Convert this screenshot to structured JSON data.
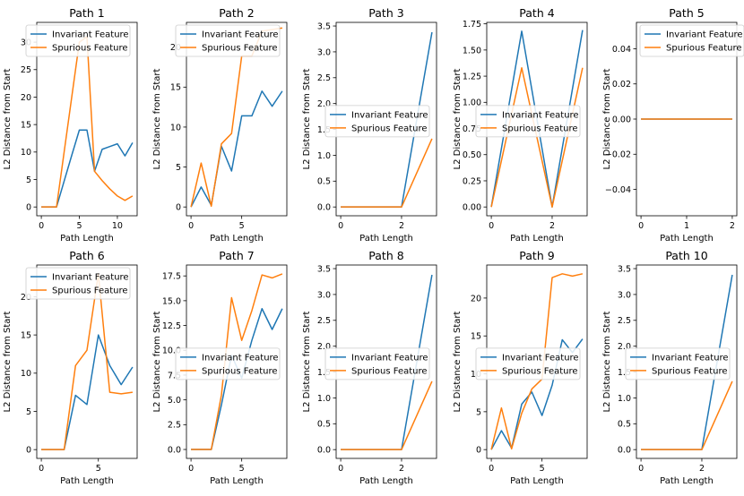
{
  "colors": {
    "invariant": "#1f77b4",
    "spurious": "#ff7f0e"
  },
  "chart_data": [
    {
      "type": "line",
      "title": "Path 1",
      "xlabel": "Path Length",
      "ylabel": "L2 Distance from Start",
      "xlim": [
        -0.6,
        12.6
      ],
      "ylim": [
        -1.6,
        33.6
      ],
      "xticks": [
        0,
        5,
        10
      ],
      "yticks": [
        0,
        5,
        10,
        15,
        20,
        25,
        30
      ],
      "legend": "upper-left",
      "series": [
        {
          "name": "Invariant Feature",
          "x": [
            0,
            1,
            2,
            3,
            4,
            5,
            6,
            7,
            8,
            9,
            10,
            11,
            12
          ],
          "values": [
            0,
            0,
            0,
            4.7,
            9.4,
            14,
            14,
            6.5,
            10.5,
            11,
            11.5,
            9.3,
            11.7
          ]
        },
        {
          "name": "Spurious Feature",
          "x": [
            0,
            1,
            2,
            3,
            4,
            5,
            6,
            7,
            8,
            9,
            10,
            11,
            12
          ],
          "values": [
            0,
            0,
            0,
            10,
            20,
            30,
            31,
            6.5,
            4.8,
            3.3,
            2,
            1.2,
            2
          ]
        }
      ]
    },
    {
      "type": "line",
      "title": "Path 2",
      "xlabel": "Path Length",
      "ylabel": "L2 Distance from Start",
      "xlim": [
        -0.45,
        9.45
      ],
      "ylim": [
        -1.1,
        23.1
      ],
      "xticks": [
        0,
        5
      ],
      "yticks": [
        0,
        5,
        10,
        15,
        20
      ],
      "legend": "upper-left",
      "series": [
        {
          "name": "Invariant Feature",
          "x": [
            0,
            1,
            2,
            3,
            4,
            5,
            6,
            7,
            8,
            9
          ],
          "values": [
            0,
            2.5,
            0.2,
            7.6,
            4.5,
            11.4,
            11.4,
            14.5,
            12.6,
            14.5
          ]
        },
        {
          "name": "Spurious Feature",
          "x": [
            0,
            1,
            2,
            3,
            4,
            5,
            6,
            7,
            8,
            9
          ],
          "values": [
            0,
            5.5,
            0.1,
            7.9,
            9.2,
            18.9,
            18.9,
            22,
            22.2,
            22.4
          ]
        }
      ]
    },
    {
      "type": "line",
      "title": "Path 3",
      "xlabel": "Path Length",
      "ylabel": "L2 Distance from Start",
      "xlim": [
        -0.15,
        3.15
      ],
      "ylim": [
        -0.17,
        3.57
      ],
      "xticks": [
        0,
        2
      ],
      "yticks": [
        0.0,
        0.5,
        1.0,
        1.5,
        2.0,
        2.5,
        3.0,
        3.5
      ],
      "legend": "center-left",
      "series": [
        {
          "name": "Invariant Feature",
          "x": [
            0,
            1,
            2,
            3
          ],
          "values": [
            0,
            0,
            0,
            3.38
          ]
        },
        {
          "name": "Spurious Feature",
          "x": [
            0,
            1,
            2,
            3
          ],
          "values": [
            0,
            0,
            0,
            1.32
          ]
        }
      ]
    },
    {
      "type": "line",
      "title": "Path 4",
      "xlabel": "Path Length",
      "ylabel": "L2 Distance from Start",
      "xlim": [
        -0.15,
        3.15
      ],
      "ylim": [
        -0.084,
        1.764
      ],
      "xticks": [
        0,
        2
      ],
      "yticks": [
        0.0,
        0.25,
        0.5,
        0.75,
        1.0,
        1.25,
        1.5,
        1.75
      ],
      "legend": "center-left",
      "series": [
        {
          "name": "Invariant Feature",
          "x": [
            0,
            1,
            2,
            3
          ],
          "values": [
            0,
            1.68,
            0,
            1.69
          ]
        },
        {
          "name": "Spurious Feature",
          "x": [
            0,
            1,
            2,
            3
          ],
          "values": [
            0,
            1.33,
            0,
            1.33
          ]
        }
      ]
    },
    {
      "type": "line",
      "title": "Path 5",
      "xlabel": "Path Length",
      "ylabel": "L2 Distance from Start",
      "xlim": [
        -0.1,
        2.1
      ],
      "ylim": [
        -0.055,
        0.055
      ],
      "xticks": [
        0,
        1,
        2
      ],
      "yticks": [
        -0.04,
        -0.02,
        0.0,
        0.02,
        0.04
      ],
      "legend": "upper-right",
      "series": [
        {
          "name": "Invariant Feature",
          "x": [
            0,
            1,
            2
          ],
          "values": [
            0,
            0,
            0
          ]
        },
        {
          "name": "Spurious Feature",
          "x": [
            0,
            1,
            2
          ],
          "values": [
            0,
            0,
            0
          ]
        }
      ]
    },
    {
      "type": "line",
      "title": "Path 6",
      "xlabel": "Path Length",
      "ylabel": "L2 Distance from Start",
      "xlim": [
        -0.4,
        8.4
      ],
      "ylim": [
        -1.15,
        24.15
      ],
      "xticks": [
        0,
        5
      ],
      "yticks": [
        0,
        5,
        10,
        15,
        20
      ],
      "legend": "upper-left",
      "series": [
        {
          "name": "Invariant Feature",
          "x": [
            0,
            1,
            2,
            3,
            4,
            5,
            6,
            7,
            8
          ],
          "values": [
            0,
            0,
            0,
            7.1,
            5.9,
            15,
            11,
            8.5,
            10.8
          ]
        },
        {
          "name": "Spurious Feature",
          "x": [
            0,
            1,
            2,
            3,
            4,
            5,
            6,
            7,
            8
          ],
          "values": [
            0,
            0,
            0,
            11,
            13,
            23,
            7.5,
            7.3,
            7.5
          ]
        }
      ]
    },
    {
      "type": "line",
      "title": "Path 7",
      "xlabel": "Path Length",
      "ylabel": "L2 Distance from Start",
      "xlim": [
        -0.45,
        9.45
      ],
      "ylim": [
        -0.9,
        18.6
      ],
      "xticks": [
        0,
        5
      ],
      "yticks": [
        0.0,
        2.5,
        5.0,
        7.5,
        10.0,
        12.5,
        15.0,
        17.5
      ],
      "legend": "center-left",
      "series": [
        {
          "name": "Invariant Feature",
          "x": [
            0,
            1,
            2,
            3,
            4,
            5,
            6,
            7,
            8,
            9
          ],
          "values": [
            0,
            0,
            0,
            4.5,
            9.5,
            7.2,
            11,
            14.2,
            12.1,
            14.2
          ]
        },
        {
          "name": "Spurious Feature",
          "x": [
            0,
            1,
            2,
            3,
            4,
            5,
            6,
            7,
            8,
            9
          ],
          "values": [
            0,
            0,
            0,
            5.5,
            15.3,
            11,
            14,
            17.6,
            17.3,
            17.7
          ]
        }
      ]
    },
    {
      "type": "line",
      "title": "Path 8",
      "xlabel": "Path Length",
      "ylabel": "L2 Distance from Start",
      "xlim": [
        -0.15,
        3.15
      ],
      "ylim": [
        -0.17,
        3.57
      ],
      "xticks": [
        0,
        2
      ],
      "yticks": [
        0.0,
        0.5,
        1.0,
        1.5,
        2.0,
        2.5,
        3.0,
        3.5
      ],
      "legend": "center-left",
      "series": [
        {
          "name": "Invariant Feature",
          "x": [
            0,
            1,
            2,
            3
          ],
          "values": [
            0,
            0,
            0,
            3.38
          ]
        },
        {
          "name": "Spurious Feature",
          "x": [
            0,
            1,
            2,
            3
          ],
          "values": [
            0,
            0,
            0,
            1.32
          ]
        }
      ]
    },
    {
      "type": "line",
      "title": "Path 9",
      "xlabel": "Path Length",
      "ylabel": "L2 Distance from Start",
      "xlim": [
        -0.45,
        9.45
      ],
      "ylim": [
        -1.16,
        24.36
      ],
      "xticks": [
        0,
        5
      ],
      "yticks": [
        0,
        5,
        10,
        15,
        20
      ],
      "legend": "center-left",
      "series": [
        {
          "name": "Invariant Feature",
          "x": [
            0,
            1,
            2,
            3,
            4,
            5,
            6,
            7,
            8,
            9
          ],
          "values": [
            0,
            2.5,
            0.2,
            6,
            7.6,
            4.5,
            8.5,
            14.5,
            12.8,
            14.6
          ]
        },
        {
          "name": "Spurious Feature",
          "x": [
            0,
            1,
            2,
            3,
            4,
            5,
            6,
            7,
            8,
            9
          ],
          "values": [
            0,
            5.5,
            0.1,
            4.8,
            8,
            9.3,
            22.7,
            23.2,
            22.9,
            23.2
          ]
        }
      ]
    },
    {
      "type": "line",
      "title": "Path 10",
      "xlabel": "Path Length",
      "ylabel": "L2 Distance from Start",
      "xlim": [
        -0.15,
        3.15
      ],
      "ylim": [
        -0.17,
        3.57
      ],
      "xticks": [
        0,
        2
      ],
      "yticks": [
        0.0,
        0.5,
        1.0,
        1.5,
        2.0,
        2.5,
        3.0,
        3.5
      ],
      "legend": "center-left",
      "series": [
        {
          "name": "Invariant Feature",
          "x": [
            0,
            1,
            2,
            3
          ],
          "values": [
            0,
            0,
            0,
            3.38
          ]
        },
        {
          "name": "Spurious Feature",
          "x": [
            0,
            1,
            2,
            3
          ],
          "values": [
            0,
            0,
            0,
            1.32
          ]
        }
      ]
    }
  ]
}
